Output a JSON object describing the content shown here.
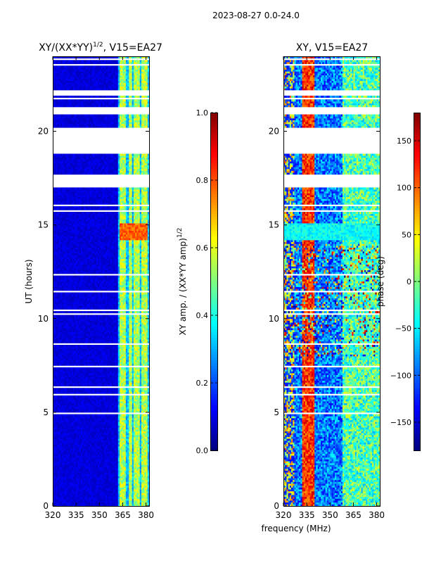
{
  "suptitle": "2023-08-27 0.0-24.0",
  "colors": {
    "jet": [
      "#00007f",
      "#0000ff",
      "#007fff",
      "#00ffff",
      "#7fff7f",
      "#ffff00",
      "#ff7f00",
      "#ff0000",
      "#7f0000"
    ],
    "gap": "#ffffff",
    "axis": "#000000"
  },
  "chart_data": [
    {
      "type": "heatmap",
      "title": "XY/(XX*YY)",
      "title_exponent": "1/2",
      "title_suffix": ", V15=EA27",
      "xlabel": "",
      "ylabel": "UT (hours)",
      "xlim": [
        320,
        382
      ],
      "ylim": [
        0,
        24
      ],
      "xticks": [
        320,
        335,
        350,
        365,
        380
      ],
      "yticks": [
        0,
        5,
        10,
        15,
        20
      ],
      "value_kind": "amplitude_ratio",
      "bright_channels_MHz": [
        364,
        366,
        370,
        373,
        375,
        378,
        380
      ],
      "high_amp_band_UT": [
        14.2,
        15.1
      ],
      "data_gaps_UT": [
        [
          17.0,
          17.7
        ],
        [
          18.8,
          20.2
        ],
        [
          20.9,
          21.3
        ],
        [
          21.9,
          22.2
        ]
      ],
      "colorbar": {
        "label": "XY amp. / (XX*YY amp)",
        "label_exponent": "1/2",
        "range": [
          0.0,
          1.0
        ],
        "ticks": [
          "0.0",
          "0.2",
          "0.4",
          "0.6",
          "0.8",
          "1.0"
        ]
      }
    },
    {
      "type": "heatmap",
      "title": "XY, V15=EA27",
      "xlabel": "frequency (MHz)",
      "ylabel": "",
      "xlim": [
        320,
        382
      ],
      "ylim": [
        0,
        24
      ],
      "xticks": [
        320,
        335,
        350,
        365,
        380
      ],
      "yticks": [
        0,
        5,
        10,
        15,
        20
      ],
      "value_kind": "phase",
      "data_gaps_UT": [
        [
          17.0,
          17.7
        ],
        [
          18.8,
          20.2
        ],
        [
          20.9,
          21.3
        ],
        [
          21.9,
          22.2
        ]
      ],
      "colorbar": {
        "label": "phase (deg)",
        "range": [
          -180,
          180
        ],
        "ticks": [
          "−150",
          "−100",
          "−50",
          "0",
          "50",
          "100",
          "150"
        ]
      }
    }
  ]
}
